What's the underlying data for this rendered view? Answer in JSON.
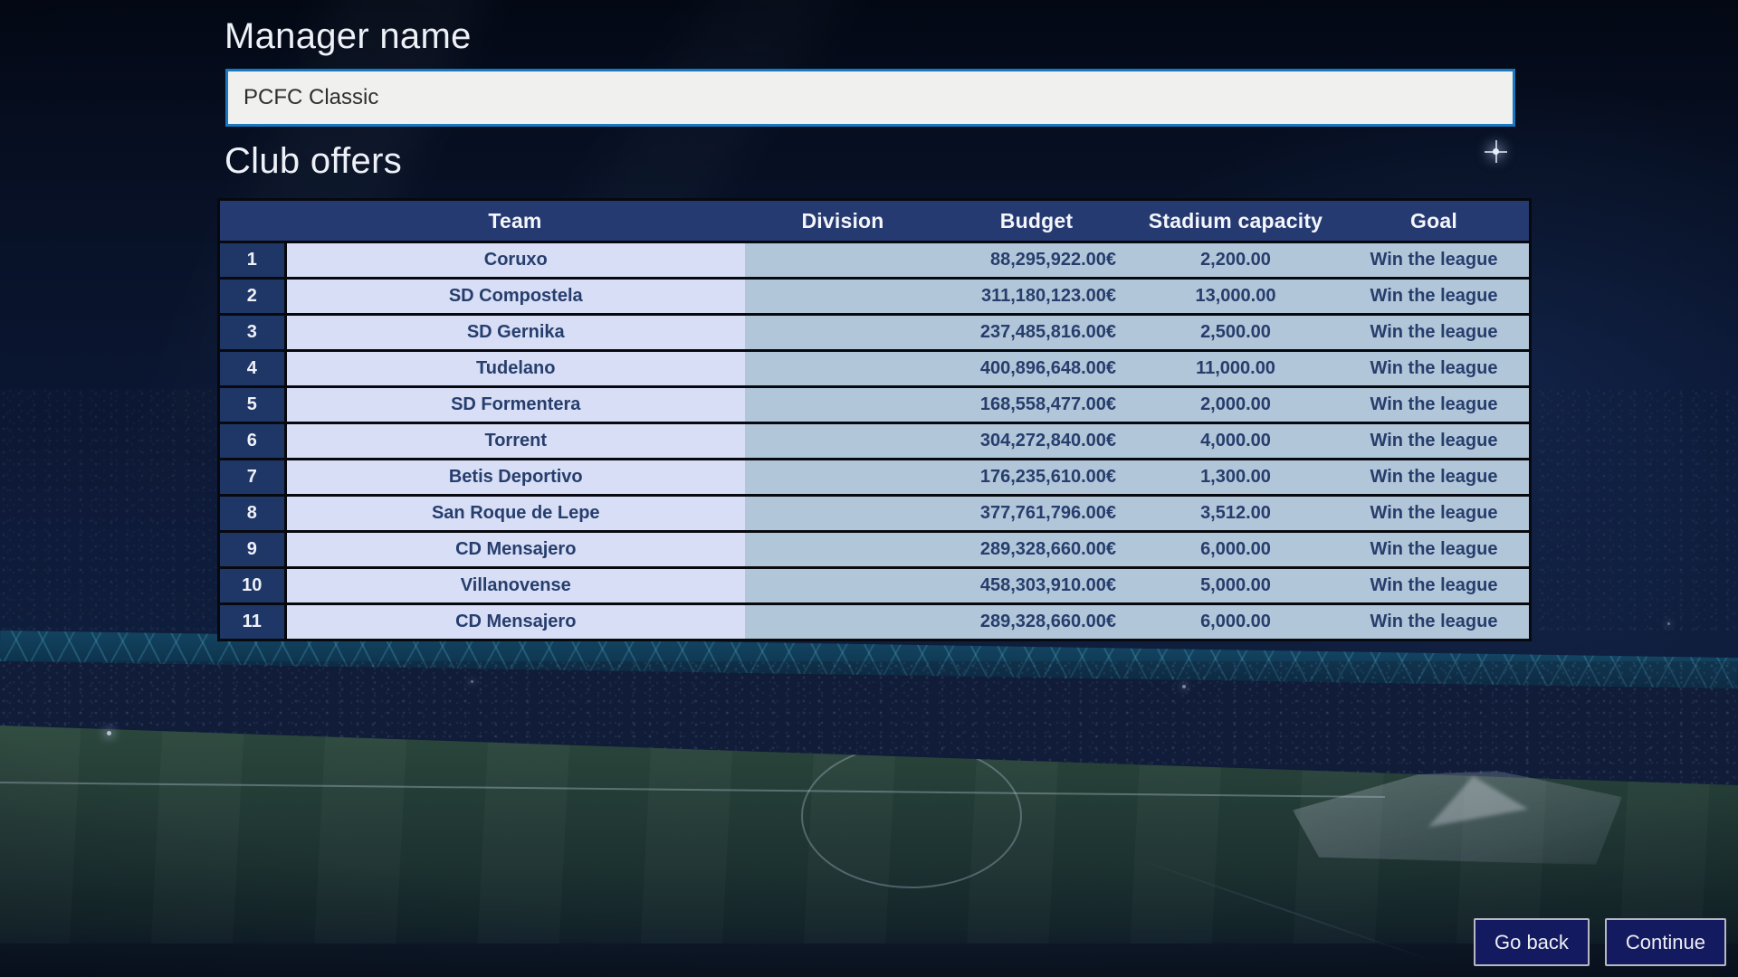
{
  "manager": {
    "heading": "Manager name",
    "value": "PCFC Classic"
  },
  "offers": {
    "heading": "Club offers"
  },
  "table": {
    "columns": [
      "Team",
      "Division",
      "Budget",
      "Stadium capacity",
      "Goal"
    ],
    "rows": [
      {
        "num": "1",
        "team": "Coruxo",
        "division": "",
        "budget": "88,295,922.00€",
        "capacity": "2,200.00",
        "goal": "Win the league"
      },
      {
        "num": "2",
        "team": "SD Compostela",
        "division": "",
        "budget": "311,180,123.00€",
        "capacity": "13,000.00",
        "goal": "Win the league"
      },
      {
        "num": "3",
        "team": "SD Gernika",
        "division": "",
        "budget": "237,485,816.00€",
        "capacity": "2,500.00",
        "goal": "Win the league"
      },
      {
        "num": "4",
        "team": "Tudelano",
        "division": "",
        "budget": "400,896,648.00€",
        "capacity": "11,000.00",
        "goal": "Win the league"
      },
      {
        "num": "5",
        "team": "SD Formentera",
        "division": "",
        "budget": "168,558,477.00€",
        "capacity": "2,000.00",
        "goal": "Win the league"
      },
      {
        "num": "6",
        "team": "Torrent",
        "division": "",
        "budget": "304,272,840.00€",
        "capacity": "4,000.00",
        "goal": "Win the league"
      },
      {
        "num": "7",
        "team": "Betis Deportivo",
        "division": "",
        "budget": "176,235,610.00€",
        "capacity": "1,300.00",
        "goal": "Win the league"
      },
      {
        "num": "8",
        "team": "San Roque de Lepe",
        "division": "",
        "budget": "377,761,796.00€",
        "capacity": "3,512.00",
        "goal": "Win the league"
      },
      {
        "num": "9",
        "team": "CD Mensajero",
        "division": "",
        "budget": "289,328,660.00€",
        "capacity": "6,000.00",
        "goal": "Win the league"
      },
      {
        "num": "10",
        "team": "Villanovense",
        "division": "",
        "budget": "458,303,910.00€",
        "capacity": "5,000.00",
        "goal": "Win the league"
      },
      {
        "num": "11",
        "team": "CD Mensajero",
        "division": "",
        "budget": "289,328,660.00€",
        "capacity": "6,000.00",
        "goal": "Win the league"
      }
    ]
  },
  "footer": {
    "go_back": "Go back",
    "continue": "Continue"
  },
  "colors": {
    "input_border": "#1a78c0",
    "table_header_bg": "#263a72",
    "row_number_bg": "#1f3767",
    "team_cell_bg": "#d7def6",
    "data_cell_bg": "#b2c6d9",
    "cell_text": "#273e6d",
    "button_bg": "#141a5f",
    "button_border": "#b6b9c3"
  }
}
